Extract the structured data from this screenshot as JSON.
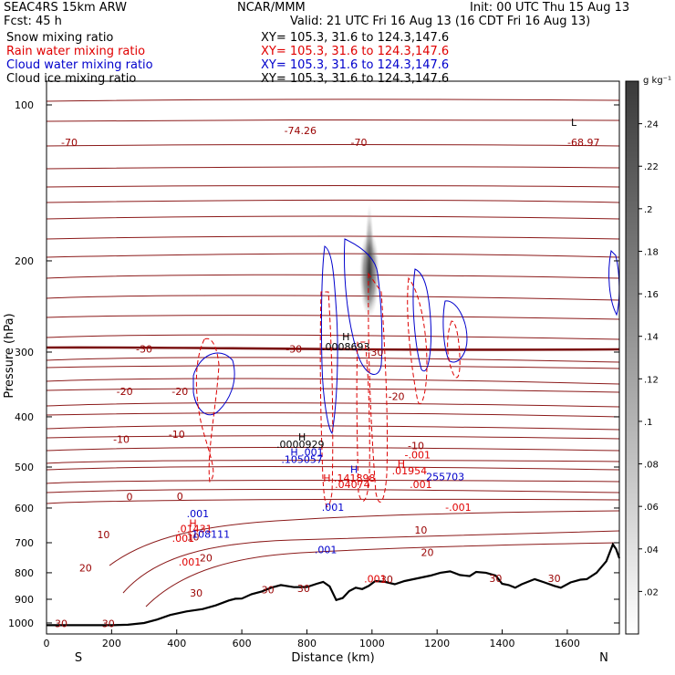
{
  "header": {
    "model": "SEAC4RS 15km ARW",
    "fcst": "Fcst:     45 h",
    "center": "NCAR/MMM",
    "init": "Init: 00 UTC Thu 15 Aug 13",
    "valid": "Valid: 21 UTC Fri 16 Aug 13 (16 CDT Fri 16 Aug 13)"
  },
  "legend": [
    {
      "name": "Snow mixing ratio",
      "xy": "XY= 105.3, 31.6 to 124.3,147.6",
      "color": "#000000"
    },
    {
      "name": "Rain water mixing ratio",
      "xy": "XY= 105.3, 31.6 to 124.3,147.6",
      "color": "#e00000"
    },
    {
      "name": "Cloud water mixing ratio",
      "xy": "XY= 105.3, 31.6 to 124.3,147.6",
      "color": "#0000cc"
    },
    {
      "name": "Cloud ice mixing ratio",
      "xy": "XY= 105.3, 31.6 to 124.3,147.6",
      "color": "#000000"
    }
  ],
  "chart_data": {
    "type": "cross-section",
    "xlabel": "Distance (km)",
    "ylabel": "Pressure (hPa)",
    "xlim": [
      0,
      1760
    ],
    "ylim": [
      1050,
      90
    ],
    "y_scale": "log",
    "x_ticks": [
      0,
      200,
      400,
      600,
      800,
      1000,
      1200,
      1400,
      1600
    ],
    "y_ticks": [
      100,
      200,
      300,
      400,
      500,
      600,
      700,
      800,
      900,
      1000
    ],
    "endpoints": {
      "left": "S",
      "right": "N"
    },
    "colorbar": {
      "units": "g kg⁻¹",
      "ticks": [
        ".02",
        ".04",
        ".06",
        ".08",
        ".1",
        ".12",
        ".14",
        ".16",
        ".18",
        ".2",
        ".22",
        ".24"
      ],
      "range": [
        0,
        0.26
      ]
    },
    "terrain_km_hpa": [
      [
        0,
        1010
      ],
      [
        100,
        1010
      ],
      [
        200,
        1010
      ],
      [
        250,
        1008
      ],
      [
        300,
        1000
      ],
      [
        340,
        985
      ],
      [
        380,
        965
      ],
      [
        430,
        950
      ],
      [
        480,
        940
      ],
      [
        520,
        925
      ],
      [
        560,
        905
      ],
      [
        580,
        898
      ],
      [
        600,
        897
      ],
      [
        630,
        880
      ],
      [
        660,
        870
      ],
      [
        690,
        855
      ],
      [
        720,
        845
      ],
      [
        760,
        853
      ],
      [
        800,
        852
      ],
      [
        830,
        840
      ],
      [
        850,
        833
      ],
      [
        870,
        850
      ],
      [
        890,
        903
      ],
      [
        910,
        895
      ],
      [
        930,
        868
      ],
      [
        950,
        855
      ],
      [
        970,
        860
      ],
      [
        990,
        848
      ],
      [
        1010,
        830
      ],
      [
        1040,
        833
      ],
      [
        1070,
        842
      ],
      [
        1100,
        830
      ],
      [
        1140,
        820
      ],
      [
        1180,
        810
      ],
      [
        1210,
        800
      ],
      [
        1240,
        795
      ],
      [
        1270,
        808
      ],
      [
        1300,
        812
      ],
      [
        1320,
        797
      ],
      [
        1350,
        800
      ],
      [
        1380,
        810
      ],
      [
        1400,
        840
      ],
      [
        1420,
        845
      ],
      [
        1440,
        855
      ],
      [
        1460,
        842
      ],
      [
        1500,
        823
      ],
      [
        1530,
        835
      ],
      [
        1560,
        848
      ],
      [
        1580,
        855
      ],
      [
        1610,
        835
      ],
      [
        1640,
        825
      ],
      [
        1660,
        823
      ],
      [
        1690,
        800
      ],
      [
        1720,
        760
      ],
      [
        1740,
        705
      ],
      [
        1750,
        720
      ],
      [
        1760,
        750
      ]
    ],
    "temperature_labels": [
      {
        "t": "-70",
        "x": 70,
        "p": 118,
        "color": "#990000"
      },
      {
        "t": "-74.26",
        "x": 780,
        "p": 112,
        "color": "#990000"
      },
      {
        "t": "-70",
        "x": 960,
        "p": 118,
        "color": "#990000"
      },
      {
        "t": "-68.97",
        "x": 1650,
        "p": 118,
        "color": "#990000"
      },
      {
        "t": "-30",
        "x": 300,
        "p": 296,
        "color": "#990000"
      },
      {
        "t": "-30",
        "x": 760,
        "p": 296,
        "color": "#990000"
      },
      {
        "t": "-30",
        "x": 1010,
        "p": 300,
        "color": "#990000"
      },
      {
        "t": "-20",
        "x": 240,
        "p": 357,
        "color": "#990000"
      },
      {
        "t": "-20",
        "x": 410,
        "p": 357,
        "color": "#990000"
      },
      {
        "t": "-20",
        "x": 1075,
        "p": 365,
        "color": "#990000"
      },
      {
        "t": "-10",
        "x": 230,
        "p": 442,
        "color": "#990000"
      },
      {
        "t": "-10",
        "x": 400,
        "p": 432,
        "color": "#990000"
      },
      {
        "t": "-10",
        "x": 1135,
        "p": 455,
        "color": "#990000"
      },
      {
        "t": "0",
        "x": 255,
        "p": 570,
        "color": "#990000"
      },
      {
        "t": "0",
        "x": 410,
        "p": 569,
        "color": "#990000"
      },
      {
        "t": "10",
        "x": 175,
        "p": 675,
        "color": "#990000"
      },
      {
        "t": "10",
        "x": 450,
        "p": 682,
        "color": "#990000"
      },
      {
        "t": "10",
        "x": 1150,
        "p": 661,
        "color": "#990000"
      },
      {
        "t": "20",
        "x": 120,
        "p": 782,
        "color": "#990000"
      },
      {
        "t": "20",
        "x": 490,
        "p": 748,
        "color": "#990000"
      },
      {
        "t": "20",
        "x": 1170,
        "p": 730,
        "color": "#990000"
      },
      {
        "t": "30",
        "x": 460,
        "p": 875,
        "color": "#990000"
      },
      {
        "t": "30",
        "x": 680,
        "p": 862,
        "color": "#990000"
      },
      {
        "t": "30",
        "x": 790,
        "p": 857,
        "color": "#990000"
      },
      {
        "t": "30",
        "x": 1045,
        "p": 823,
        "color": "#990000"
      },
      {
        "t": "30",
        "x": 1380,
        "p": 820,
        "color": "#990000"
      },
      {
        "t": "30",
        "x": 1560,
        "p": 820,
        "color": "#990000"
      },
      {
        "t": "30",
        "x": 45,
        "p": 1003,
        "color": "#990000"
      },
      {
        "t": "30",
        "x": 190,
        "p": 1003,
        "color": "#990000"
      }
    ],
    "annotations": [
      {
        "t": "H",
        "x": 920,
        "p": 280,
        "color": "#000000"
      },
      {
        "t": ".0008693",
        "x": 920,
        "p": 293,
        "color": "#000000"
      },
      {
        "t": "H",
        "x": 785,
        "p": 437,
        "color": "#000000"
      },
      {
        "t": ".0000929",
        "x": 780,
        "p": 452,
        "color": "#000000"
      },
      {
        "t": "H .001",
        "x": 800,
        "p": 468,
        "color": "#0000cc"
      },
      {
        "t": ".105057",
        "x": 785,
        "p": 483,
        "color": "#0000cc"
      },
      {
        "t": "-.001",
        "x": 1140,
        "p": 473,
        "color": "#e00000"
      },
      {
        "t": "H",
        "x": 1090,
        "p": 492,
        "color": "#e00000"
      },
      {
        "t": ".01954",
        "x": 1115,
        "p": 508,
        "color": "#e00000"
      },
      {
        "t": "255703",
        "x": 1225,
        "p": 522,
        "color": "#0000cc"
      },
      {
        "t": "H",
        "x": 945,
        "p": 505,
        "color": "#0000cc"
      },
      {
        "t": "H .141898",
        "x": 930,
        "p": 525,
        "color": "#e00000"
      },
      {
        "t": ".04074",
        "x": 940,
        "p": 540,
        "color": "#e00000"
      },
      {
        "t": ".001",
        "x": 1150,
        "p": 540,
        "color": "#e00000"
      },
      {
        "t": ".001",
        "x": 880,
        "p": 598,
        "color": "#0000cc"
      },
      {
        "t": "-.001",
        "x": 1265,
        "p": 598,
        "color": "#e00000"
      },
      {
        "t": ".001",
        "x": 465,
        "p": 615,
        "color": "#0000cc"
      },
      {
        "t": "H",
        "x": 450,
        "p": 642,
        "color": "#e00000"
      },
      {
        "t": ".01431",
        "x": 455,
        "p": 657,
        "color": "#e00000"
      },
      {
        "t": "108111",
        "x": 505,
        "p": 673,
        "color": "#0000cc"
      },
      {
        "t": ".001",
        "x": 420,
        "p": 686,
        "color": "#e00000"
      },
      {
        "t": ".001",
        "x": 858,
        "p": 722,
        "color": "#0000cc"
      },
      {
        "t": ".001",
        "x": 440,
        "p": 762,
        "color": "#e00000"
      },
      {
        "t": ".001",
        "x": 1010,
        "p": 822,
        "color": "#e00000"
      },
      {
        "t": "L",
        "x": 1620,
        "p": 108,
        "color": "#000000"
      }
    ]
  }
}
